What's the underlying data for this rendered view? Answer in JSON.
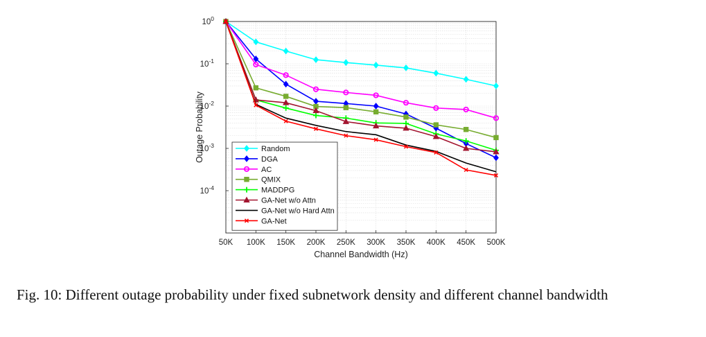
{
  "chart_data": {
    "type": "line",
    "x": [
      "50K",
      "100K",
      "150K",
      "200K",
      "250K",
      "300K",
      "350K",
      "400K",
      "450K",
      "500K"
    ],
    "xlabel": "Channel Bandwidth (Hz)",
    "ylabel": "Outage Probability",
    "yscale": "log",
    "ylim": [
      1e-05,
      1
    ],
    "yticks": [
      {
        "value": 1,
        "base": "10",
        "exp": "0"
      },
      {
        "value": 0.1,
        "base": "10",
        "exp": "-1"
      },
      {
        "value": 0.01,
        "base": "10",
        "exp": "-2"
      },
      {
        "value": 0.001,
        "base": "10",
        "exp": "-3"
      },
      {
        "value": 0.0001,
        "base": "10",
        "exp": "-4"
      }
    ],
    "grid": true,
    "legend_position": "bottom-left",
    "series": [
      {
        "name": "Random",
        "color": "#00ffff",
        "marker": "diamond",
        "values": [
          1.0,
          0.33,
          0.2,
          0.125,
          0.107,
          0.093,
          0.08,
          0.06,
          0.043,
          0.03
        ]
      },
      {
        "name": "DGA",
        "color": "#0000ff",
        "marker": "diamond",
        "values": [
          1.0,
          0.13,
          0.033,
          0.013,
          0.0115,
          0.01,
          0.0065,
          0.003,
          0.0013,
          0.0006
        ]
      },
      {
        "name": "AC",
        "color": "#ff00ff",
        "marker": "circle",
        "values": [
          1.0,
          0.096,
          0.054,
          0.025,
          0.021,
          0.018,
          0.012,
          0.009,
          0.0083,
          0.0052
        ]
      },
      {
        "name": "QMIX",
        "color": "#77ac30",
        "marker": "square",
        "values": [
          1.0,
          0.027,
          0.017,
          0.0098,
          0.0092,
          0.0073,
          0.0055,
          0.0036,
          0.0028,
          0.0018
        ]
      },
      {
        "name": "MADDPG",
        "color": "#00ff00",
        "marker": "plus",
        "values": [
          1.0,
          0.014,
          0.009,
          0.006,
          0.0052,
          0.004,
          0.0039,
          0.0022,
          0.0015,
          0.0009
        ]
      },
      {
        "name": "GA-Net w/o Attn",
        "color": "#a2142f",
        "marker": "triangle",
        "values": [
          1.0,
          0.014,
          0.012,
          0.0078,
          0.0043,
          0.0034,
          0.003,
          0.0019,
          0.001,
          0.00083
        ]
      },
      {
        "name": "GA-Net w/o Hard Attn",
        "color": "#000000",
        "marker": "none",
        "values": [
          1.0,
          0.011,
          0.0052,
          0.0035,
          0.0025,
          0.0021,
          0.0012,
          0.00085,
          0.00045,
          0.00028
        ]
      },
      {
        "name": "GA-Net",
        "color": "#ff0000",
        "marker": "x",
        "values": [
          1.0,
          0.0105,
          0.0044,
          0.0029,
          0.002,
          0.0016,
          0.0011,
          0.0008,
          0.00031,
          0.00023
        ]
      }
    ]
  },
  "caption": {
    "text": "Fig. 10: Different outage probability under fixed subnetwork density and different channel bandwidth"
  }
}
